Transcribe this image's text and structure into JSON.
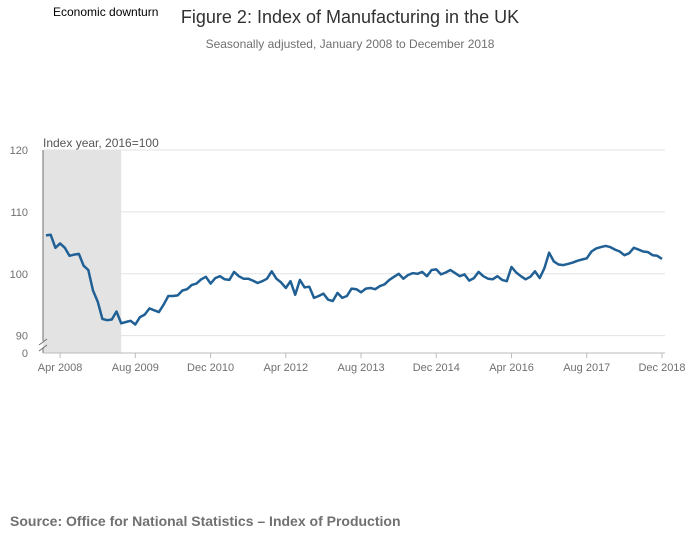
{
  "chart_data": {
    "type": "line",
    "title": "Figure 2: Index of Manufacturing in the UK",
    "subtitle": "Seasonally adjusted, January 2008 to December 2018",
    "ylabel": "Index year, 2016=100",
    "ylim": [
      88,
      120
    ],
    "y_ticks": [
      0,
      90,
      100,
      110,
      120
    ],
    "y_axis_break": true,
    "x_tick_labels": [
      "Apr 2008",
      "Aug 2009",
      "Dec 2010",
      "Apr 2012",
      "Aug 2013",
      "Dec 2014",
      "Apr 2016",
      "Aug 2017",
      "Dec 2018"
    ],
    "x_tick_months": [
      3,
      19,
      35,
      51,
      67,
      83,
      99,
      115,
      131
    ],
    "shaded_region": {
      "label": "Economic downturn",
      "start_month": 0,
      "end_month": 16
    },
    "grid": true,
    "series": [
      {
        "name": "Index of Manufacturing",
        "color": "#206095",
        "start": "Jan 2008",
        "values": [
          106.2,
          106.3,
          104.2,
          104.9,
          104.2,
          102.9,
          103.1,
          103.2,
          101.3,
          100.6,
          97.3,
          95.5,
          92.7,
          92.5,
          92.6,
          93.9,
          92.0,
          92.2,
          92.4,
          91.8,
          93.0,
          93.4,
          94.4,
          94.1,
          93.8,
          95.0,
          96.4,
          96.4,
          96.5,
          97.3,
          97.5,
          98.2,
          98.4,
          99.1,
          99.5,
          98.4,
          99.3,
          99.6,
          99.1,
          99.0,
          100.3,
          99.6,
          99.2,
          99.2,
          98.9,
          98.5,
          98.8,
          99.2,
          100.4,
          99.2,
          98.6,
          97.7,
          98.8,
          96.6,
          99.0,
          97.8,
          97.9,
          96.1,
          96.4,
          96.8,
          95.8,
          95.6,
          96.9,
          96.1,
          96.4,
          97.6,
          97.5,
          97.0,
          97.6,
          97.7,
          97.5,
          98.0,
          98.3,
          99.0,
          99.5,
          100.0,
          99.2,
          99.8,
          100.1,
          100.0,
          100.3,
          99.6,
          100.6,
          100.7,
          99.9,
          100.2,
          100.6,
          100.1,
          99.6,
          99.9,
          98.9,
          99.3,
          100.3,
          99.6,
          99.2,
          99.1,
          99.6,
          99.0,
          98.8,
          101.1,
          100.2,
          99.6,
          99.1,
          99.5,
          100.4,
          99.3,
          100.9,
          103.4,
          102.0,
          101.5,
          101.4,
          101.6,
          101.8,
          102.1,
          102.3,
          102.5,
          103.6,
          104.1,
          104.3,
          104.5,
          104.3,
          103.9,
          103.6,
          103.0,
          103.3,
          104.2,
          103.9,
          103.6,
          103.5,
          103.0,
          102.9,
          102.4
        ]
      }
    ]
  },
  "source": "Source: Office for National Statistics – Index of Production"
}
